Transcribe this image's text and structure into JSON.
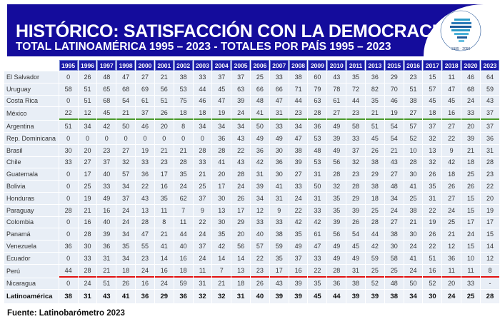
{
  "header": {
    "title": "HISTÓRICO: SATISFACCIÓN CON LA DEMOCRACIA",
    "subtitle": "TOTAL LATINOAMÉRICA 1995 – 2023 - TOTALES POR PAÍS 1995 – 2023",
    "logo_text": "LATINOBARÓMETRO 1995 - 2050"
  },
  "colors": {
    "banner": "#140c9c",
    "header_cell": "#1a1aa8",
    "green_line": "#4a9a2a",
    "red_line": "#e01010"
  },
  "table": {
    "years": [
      "1995",
      "1996",
      "1997",
      "1998",
      "2000",
      "2001",
      "2002",
      "2003",
      "2004",
      "2005",
      "2006",
      "2007",
      "2008",
      "2009",
      "2010",
      "2011",
      "2013",
      "2015",
      "2016",
      "2017",
      "2018",
      "2020",
      "2023"
    ],
    "rows": [
      {
        "country": "El Salvador",
        "values": [
          "0",
          "26",
          "48",
          "47",
          "27",
          "21",
          "38",
          "33",
          "37",
          "37",
          "25",
          "33",
          "38",
          "60",
          "43",
          "35",
          "36",
          "29",
          "23",
          "15",
          "11",
          "46",
          "64"
        ]
      },
      {
        "country": "Uruguay",
        "values": [
          "58",
          "51",
          "65",
          "68",
          "69",
          "56",
          "53",
          "44",
          "45",
          "63",
          "66",
          "66",
          "71",
          "79",
          "78",
          "72",
          "82",
          "70",
          "51",
          "57",
          "47",
          "68",
          "59"
        ]
      },
      {
        "country": "Costa Rica",
        "values": [
          "0",
          "51",
          "68",
          "54",
          "61",
          "51",
          "75",
          "46",
          "47",
          "39",
          "48",
          "47",
          "44",
          "63",
          "61",
          "44",
          "35",
          "46",
          "38",
          "45",
          "45",
          "24",
          "43"
        ]
      },
      {
        "country": "México",
        "values": [
          "22",
          "12",
          "45",
          "21",
          "37",
          "26",
          "18",
          "18",
          "19",
          "24",
          "41",
          "31",
          "23",
          "28",
          "27",
          "23",
          "21",
          "19",
          "27",
          "18",
          "16",
          "33",
          "37"
        ]
      },
      {
        "country": "Argentina",
        "values": [
          "51",
          "34",
          "42",
          "50",
          "46",
          "20",
          "8",
          "34",
          "34",
          "34",
          "50",
          "33",
          "34",
          "36",
          "49",
          "58",
          "51",
          "54",
          "57",
          "37",
          "27",
          "20",
          "37"
        ]
      },
      {
        "country": "Rep. Dominicana",
        "values": [
          "0",
          "0",
          "0",
          "0",
          "0",
          "0",
          "0",
          "0",
          "36",
          "43",
          "49",
          "49",
          "47",
          "53",
          "39",
          "33",
          "45",
          "54",
          "52",
          "32",
          "22",
          "39",
          "36"
        ]
      },
      {
        "country": "Brasil",
        "values": [
          "30",
          "20",
          "23",
          "27",
          "19",
          "21",
          "21",
          "28",
          "28",
          "22",
          "36",
          "30",
          "38",
          "48",
          "49",
          "37",
          "26",
          "21",
          "10",
          "13",
          "9",
          "21",
          "31"
        ]
      },
      {
        "country": "Chile",
        "values": [
          "33",
          "27",
          "37",
          "32",
          "33",
          "23",
          "28",
          "33",
          "41",
          "43",
          "42",
          "36",
          "39",
          "53",
          "56",
          "32",
          "38",
          "43",
          "28",
          "32",
          "42",
          "18",
          "28"
        ]
      },
      {
        "country": "Guatemala",
        "values": [
          "0",
          "17",
          "40",
          "57",
          "36",
          "17",
          "35",
          "21",
          "20",
          "28",
          "31",
          "30",
          "27",
          "31",
          "28",
          "23",
          "29",
          "27",
          "30",
          "26",
          "18",
          "25",
          "23"
        ]
      },
      {
        "country": "Bolivia",
        "values": [
          "0",
          "25",
          "33",
          "34",
          "22",
          "16",
          "24",
          "25",
          "17",
          "24",
          "39",
          "41",
          "33",
          "50",
          "32",
          "28",
          "38",
          "48",
          "41",
          "35",
          "26",
          "26",
          "22"
        ]
      },
      {
        "country": "Honduras",
        "values": [
          "0",
          "19",
          "49",
          "37",
          "43",
          "35",
          "62",
          "37",
          "30",
          "26",
          "34",
          "31",
          "24",
          "31",
          "35",
          "29",
          "18",
          "34",
          "25",
          "31",
          "27",
          "15",
          "20"
        ]
      },
      {
        "country": "Paraguay",
        "values": [
          "28",
          "21",
          "16",
          "24",
          "13",
          "11",
          "7",
          "9",
          "13",
          "17",
          "12",
          "9",
          "22",
          "33",
          "35",
          "39",
          "25",
          "24",
          "38",
          "22",
          "24",
          "15",
          "19"
        ]
      },
      {
        "country": "Colombia",
        "values": [
          "0",
          "16",
          "40",
          "24",
          "28",
          "8",
          "11",
          "22",
          "30",
          "29",
          "33",
          "33",
          "42",
          "42",
          "39",
          "26",
          "28",
          "27",
          "21",
          "19",
          "25",
          "17",
          "17"
        ]
      },
      {
        "country": "Panamá",
        "values": [
          "0",
          "28",
          "39",
          "34",
          "47",
          "21",
          "44",
          "24",
          "35",
          "20",
          "40",
          "38",
          "35",
          "61",
          "56",
          "54",
          "44",
          "38",
          "30",
          "26",
          "21",
          "24",
          "15"
        ]
      },
      {
        "country": "Venezuela",
        "values": [
          "36",
          "30",
          "36",
          "35",
          "55",
          "41",
          "40",
          "37",
          "42",
          "56",
          "57",
          "59",
          "49",
          "47",
          "49",
          "45",
          "42",
          "30",
          "24",
          "22",
          "12",
          "15",
          "14"
        ]
      },
      {
        "country": "Ecuador",
        "values": [
          "0",
          "33",
          "31",
          "34",
          "23",
          "14",
          "16",
          "24",
          "14",
          "14",
          "22",
          "35",
          "37",
          "33",
          "49",
          "49",
          "59",
          "58",
          "41",
          "51",
          "36",
          "10",
          "12"
        ]
      },
      {
        "country": "Perú",
        "values": [
          "44",
          "28",
          "21",
          "18",
          "24",
          "16",
          "18",
          "11",
          "7",
          "13",
          "23",
          "17",
          "16",
          "22",
          "28",
          "31",
          "25",
          "25",
          "24",
          "16",
          "11",
          "11",
          "8"
        ]
      },
      {
        "country": "Nicaragua",
        "values": [
          "0",
          "24",
          "51",
          "26",
          "16",
          "24",
          "59",
          "31",
          "21",
          "18",
          "26",
          "43",
          "39",
          "35",
          "36",
          "38",
          "52",
          "48",
          "50",
          "52",
          "20",
          "33",
          "-"
        ]
      }
    ],
    "total": {
      "country": "Latinoamérica",
      "values": [
        "38",
        "31",
        "43",
        "41",
        "36",
        "29",
        "36",
        "32",
        "32",
        "31",
        "40",
        "39",
        "39",
        "45",
        "44",
        "39",
        "39",
        "38",
        "34",
        "30",
        "24",
        "25",
        "28"
      ]
    }
  },
  "footer": {
    "source": "Fuente: Latinobarómetro 2023"
  }
}
